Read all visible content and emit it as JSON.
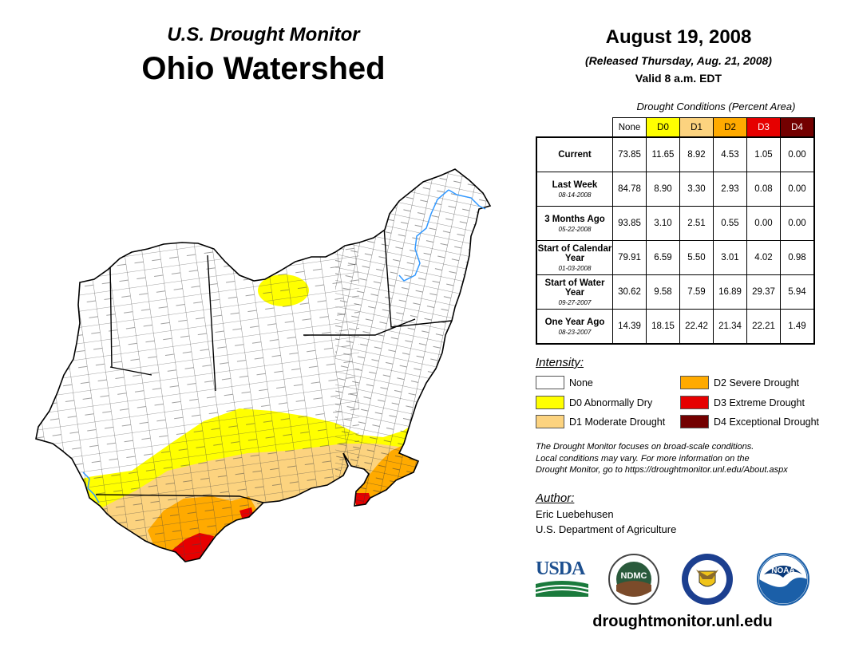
{
  "header": {
    "subtitle": "U.S. Drought Monitor",
    "region": "Ohio Watershed",
    "date": "August 19, 2008",
    "released": "(Released Thursday, Aug. 21, 2008)",
    "valid": "Valid 8 a.m. EDT"
  },
  "table": {
    "caption": "Drought Conditions (Percent Area)",
    "columns": [
      "None",
      "D0",
      "D1",
      "D2",
      "D3",
      "D4"
    ],
    "column_colors": [
      "#ffffff",
      "#ffff00",
      "#fcd37f",
      "#ffaa00",
      "#e60000",
      "#730000"
    ],
    "rows": [
      {
        "label": "Current",
        "date": "",
        "values": [
          "73.85",
          "11.65",
          "8.92",
          "4.53",
          "1.05",
          "0.00"
        ]
      },
      {
        "label": "Last Week",
        "date": "08-14-2008",
        "values": [
          "84.78",
          "8.90",
          "3.30",
          "2.93",
          "0.08",
          "0.00"
        ]
      },
      {
        "label": "3 Months Ago",
        "date": "05-22-2008",
        "values": [
          "93.85",
          "3.10",
          "2.51",
          "0.55",
          "0.00",
          "0.00"
        ]
      },
      {
        "label": "Start of Calendar Year",
        "date": "01-03-2008",
        "values": [
          "79.91",
          "6.59",
          "5.50",
          "3.01",
          "4.02",
          "0.98"
        ]
      },
      {
        "label": "Start of Water Year",
        "date": "09-27-2007",
        "values": [
          "30.62",
          "9.58",
          "7.59",
          "16.89",
          "29.37",
          "5.94"
        ]
      },
      {
        "label": "One Year Ago",
        "date": "08-23-2007",
        "values": [
          "14.39",
          "18.15",
          "22.42",
          "21.34",
          "22.21",
          "1.49"
        ]
      }
    ]
  },
  "legend": {
    "title": "Intensity:",
    "items": [
      {
        "label": "None",
        "color": "#ffffff"
      },
      {
        "label": "D0 Abnormally Dry",
        "color": "#ffff00"
      },
      {
        "label": "D1 Moderate Drought",
        "color": "#fcd37f"
      },
      {
        "label": "D2 Severe Drought",
        "color": "#ffaa00"
      },
      {
        "label": "D3 Extreme Drought",
        "color": "#e60000"
      },
      {
        "label": "D4 Exceptional Drought",
        "color": "#730000"
      }
    ]
  },
  "note": {
    "line1": "The Drought Monitor focuses on broad-scale conditions.",
    "line2": "Local conditions may vary. For more information on the",
    "line3": "Drought Monitor, go to https://droughtmonitor.unl.edu/About.aspx"
  },
  "author": {
    "heading": "Author:",
    "name": "Eric Luebehusen",
    "org": "U.S. Department of Agriculture"
  },
  "logos": {
    "usda": "USDA",
    "ndmc": "NDMC",
    "noaa": "NOAA"
  },
  "footer_url": "droughtmonitor.unl.edu"
}
